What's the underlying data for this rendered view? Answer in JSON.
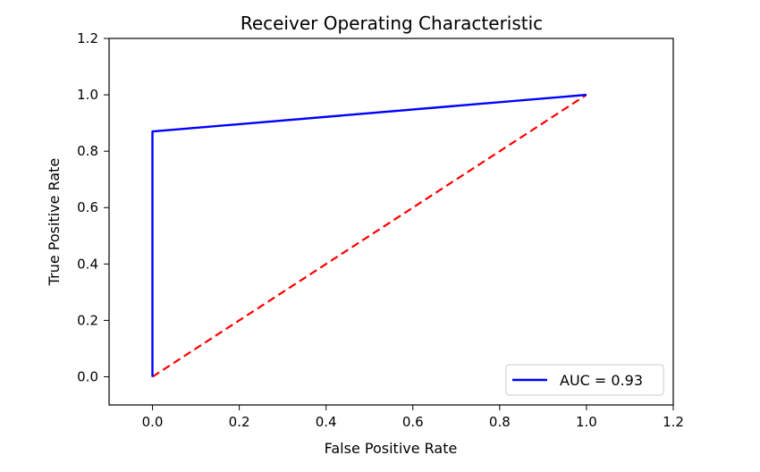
{
  "chart_data": {
    "type": "line",
    "title": "Receiver Operating Characteristic",
    "xlabel": "False Positive Rate",
    "ylabel": "True Positive Rate",
    "xlim": [
      -0.1,
      1.2
    ],
    "ylim": [
      -0.1,
      1.2
    ],
    "xticks": [
      "0.0",
      "0.2",
      "0.4",
      "0.6",
      "0.8",
      "1.0",
      "1.2"
    ],
    "yticks": [
      "0.0",
      "0.2",
      "0.4",
      "0.6",
      "0.8",
      "1.0",
      "1.2"
    ],
    "grid": false,
    "legend_position": "lower-right",
    "series": [
      {
        "name": "AUC = 0.93",
        "color": "#0000ff",
        "style": "solid",
        "x": [
          0.0,
          0.0,
          1.0
        ],
        "y": [
          0.0,
          0.87,
          1.0
        ]
      },
      {
        "color": "#ff0000",
        "style": "dashed",
        "x": [
          0.0,
          1.0
        ],
        "y": [
          0.0,
          1.0
        ]
      }
    ]
  }
}
